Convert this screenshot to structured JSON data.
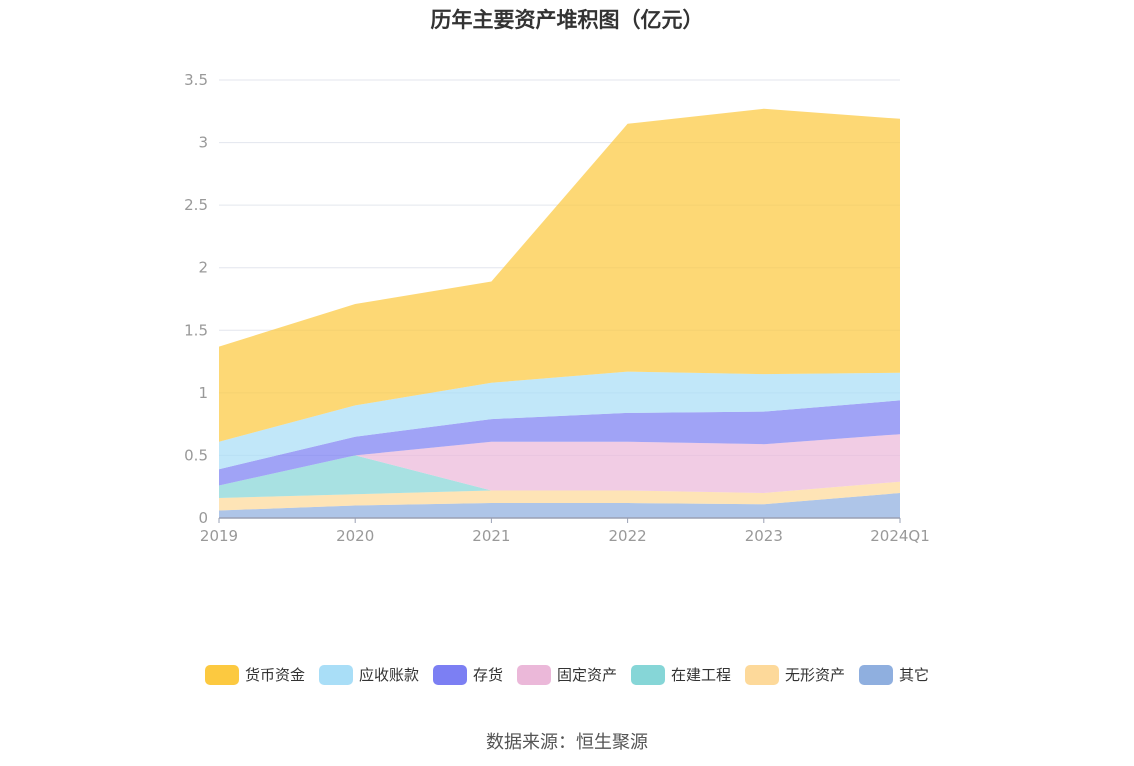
{
  "chart_data": {
    "type": "area",
    "stacked": true,
    "title": "历年主要资产堆积图（亿元）",
    "xlabel": "",
    "ylabel": "",
    "categories": [
      "2019",
      "2020",
      "2021",
      "2022",
      "2023",
      "2024Q1"
    ],
    "ylim": [
      0,
      3.5
    ],
    "yticks": [
      0,
      0.5,
      1,
      1.5,
      2,
      2.5,
      3,
      3.5
    ],
    "grid": true,
    "legend_position": "bottom",
    "series": [
      {
        "name": "其它",
        "color": "#8FAFDF",
        "values": [
          0.06,
          0.1,
          0.12,
          0.12,
          0.11,
          0.2
        ]
      },
      {
        "name": "无形资产",
        "color": "#FDD99A",
        "values": [
          0.1,
          0.09,
          0.1,
          0.1,
          0.09,
          0.09
        ]
      },
      {
        "name": "在建工程",
        "color": "#86D6D7",
        "values": [
          0.1,
          0.31,
          0.0,
          0.0,
          0.0,
          0.0
        ]
      },
      {
        "name": "固定资产",
        "color": "#EBB8D9",
        "values": [
          0.0,
          0.0,
          0.39,
          0.39,
          0.39,
          0.38
        ]
      },
      {
        "name": "存货",
        "color": "#7C7FF3",
        "values": [
          0.13,
          0.15,
          0.18,
          0.23,
          0.26,
          0.27
        ]
      },
      {
        "name": "应收账款",
        "color": "#A9DEF7",
        "values": [
          0.22,
          0.25,
          0.29,
          0.33,
          0.3,
          0.22
        ]
      },
      {
        "name": "货币资金",
        "color": "#FCC940",
        "values": [
          0.76,
          0.81,
          0.81,
          1.98,
          2.12,
          2.03
        ]
      }
    ]
  },
  "legend_order": [
    "货币资金",
    "应收账款",
    "存货",
    "固定资产",
    "在建工程",
    "无形资产",
    "其它"
  ],
  "source": "数据来源：恒生聚源"
}
